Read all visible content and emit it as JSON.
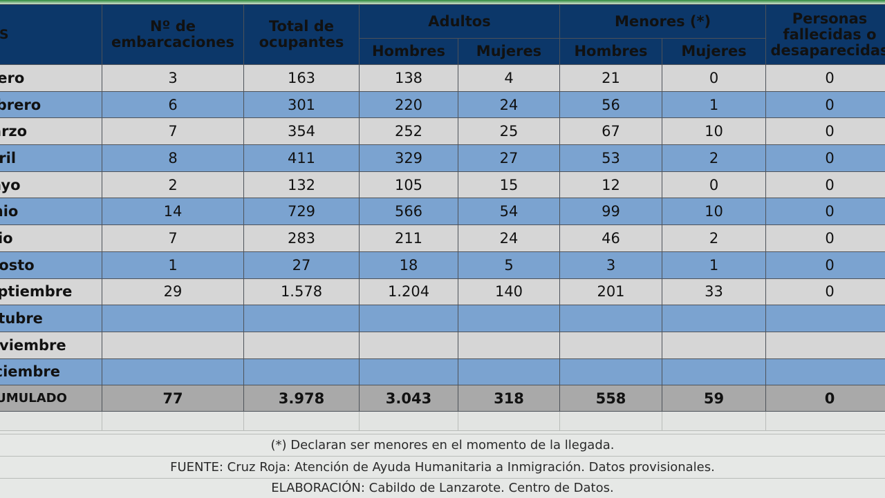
{
  "header": {
    "mes": "MES",
    "embarcaciones": "Nº de embarcaciones",
    "ocupantes": "Total de ocupantes",
    "adultos": "Adultos",
    "menores": "Menores (*)",
    "fallecidos": "Personas fallecidas o desaparecidas",
    "hombres": "Hombres",
    "mujeres": "Mujeres"
  },
  "rows": [
    {
      "mes": "Enero",
      "emb": "3",
      "ocu": "163",
      "ah": "138",
      "am": "4",
      "mh": "21",
      "mm": "0",
      "fd": "0"
    },
    {
      "mes": "Febrero",
      "emb": "6",
      "ocu": "301",
      "ah": "220",
      "am": "24",
      "mh": "56",
      "mm": "1",
      "fd": "0"
    },
    {
      "mes": "Marzo",
      "emb": "7",
      "ocu": "354",
      "ah": "252",
      "am": "25",
      "mh": "67",
      "mm": "10",
      "fd": "0"
    },
    {
      "mes": "Abril",
      "emb": "8",
      "ocu": "411",
      "ah": "329",
      "am": "27",
      "mh": "53",
      "mm": "2",
      "fd": "0"
    },
    {
      "mes": "Mayo",
      "emb": "2",
      "ocu": "132",
      "ah": "105",
      "am": "15",
      "mh": "12",
      "mm": "0",
      "fd": "0"
    },
    {
      "mes": "Junio",
      "emb": "14",
      "ocu": "729",
      "ah": "566",
      "am": "54",
      "mh": "99",
      "mm": "10",
      "fd": "0"
    },
    {
      "mes": "Julio",
      "emb": "7",
      "ocu": "283",
      "ah": "211",
      "am": "24",
      "mh": "46",
      "mm": "2",
      "fd": "0"
    },
    {
      "mes": "Agosto",
      "emb": "1",
      "ocu": "27",
      "ah": "18",
      "am": "5",
      "mh": "3",
      "mm": "1",
      "fd": "0"
    },
    {
      "mes": "Septiembre",
      "emb": "29",
      "ocu": "1.578",
      "ah": "1.204",
      "am": "140",
      "mh": "201",
      "mm": "33",
      "fd": "0"
    },
    {
      "mes": "Octubre",
      "emb": "",
      "ocu": "",
      "ah": "",
      "am": "",
      "mh": "",
      "mm": "",
      "fd": ""
    },
    {
      "mes": "Noviembre",
      "emb": "",
      "ocu": "",
      "ah": "",
      "am": "",
      "mh": "",
      "mm": "",
      "fd": ""
    },
    {
      "mes": "Diciembre",
      "emb": "",
      "ocu": "",
      "ah": "",
      "am": "",
      "mh": "",
      "mm": "",
      "fd": ""
    }
  ],
  "total": {
    "mes": "ACUMULADO",
    "emb": "77",
    "ocu": "3.978",
    "ah": "3.043",
    "am": "318",
    "mh": "558",
    "mm": "59",
    "fd": "0"
  },
  "footer": {
    "note": "(*) Declaran ser menores en el momento de la llegada.",
    "source": "FUENTE: Cruz Roja: Atención de Ayuda Humanitaria a Inmigración. Datos provisionales.",
    "elaboration": "ELABORACIÓN: Cabildo de Lanzarote. Centro de Datos."
  },
  "colors": {
    "header": "#0c3769",
    "row_gray": "#d6d6d6",
    "row_blue": "#7ba3d0",
    "total": "#a9a9a9"
  }
}
